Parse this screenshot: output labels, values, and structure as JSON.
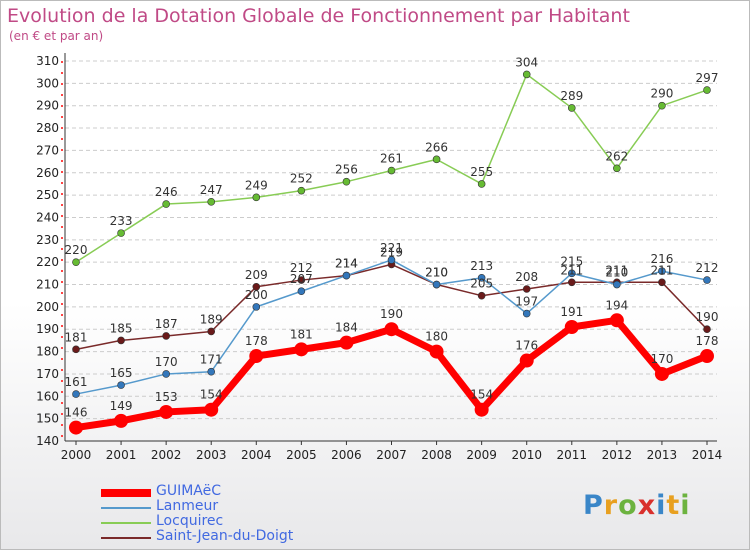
{
  "title": "Evolution de la Dotation Globale de Fonctionnement par Habitant",
  "subtitle": "(en € et par an)",
  "logo": {
    "text": "Proxiti",
    "letters": [
      {
        "c": "P",
        "color": "#3a86c8"
      },
      {
        "c": "r",
        "color": "#e8a020"
      },
      {
        "c": "o",
        "color": "#6cb33f"
      },
      {
        "c": "x",
        "color": "#d9302c"
      },
      {
        "c": "i",
        "color": "#3a86c8"
      },
      {
        "c": "t",
        "color": "#e8a020"
      },
      {
        "c": "i",
        "color": "#6cb33f"
      }
    ]
  },
  "chart_data": {
    "type": "line",
    "x": [
      "2000",
      "2001",
      "2002",
      "2003",
      "2004",
      "2005",
      "2006",
      "2007",
      "2008",
      "2009",
      "2010",
      "2011",
      "2012",
      "2013",
      "2014"
    ],
    "ylim": [
      140,
      310
    ],
    "yticks": [
      140,
      150,
      160,
      170,
      180,
      190,
      200,
      210,
      220,
      230,
      240,
      250,
      260,
      270,
      280,
      290,
      300,
      310
    ],
    "grid": "horizontal",
    "legend_position": "bottom-left",
    "series": [
      {
        "name": "Locquirec",
        "color": "#88cc55",
        "marker": "#66bb33",
        "values": [
          220,
          233,
          246,
          247,
          249,
          252,
          256,
          261,
          266,
          255,
          304,
          289,
          262,
          290,
          297
        ]
      },
      {
        "name": "Saint-Jean-du-Doigt",
        "color": "#7a2a2a",
        "marker": "#6a1a1a",
        "values": [
          181,
          185,
          187,
          189,
          209,
          212,
          214,
          219,
          210,
          205,
          208,
          211,
          211,
          211,
          190
        ]
      },
      {
        "name": "Lanmeur",
        "color": "#5599cc",
        "marker": "#3377bb",
        "values": [
          161,
          165,
          170,
          171,
          200,
          207,
          214,
          221,
          210,
          213,
          197,
          215,
          210,
          216,
          212
        ]
      },
      {
        "name": "GUIMAëC",
        "color": "#ff0000",
        "marker": "#ff0000",
        "values": [
          146,
          149,
          153,
          154,
          178,
          181,
          184,
          190,
          180,
          154,
          176,
          191,
          194,
          170,
          178
        ]
      }
    ],
    "legend_order": [
      "GUIMAëC",
      "Lanmeur",
      "Locquirec",
      "Saint-Jean-du-Doigt"
    ]
  }
}
